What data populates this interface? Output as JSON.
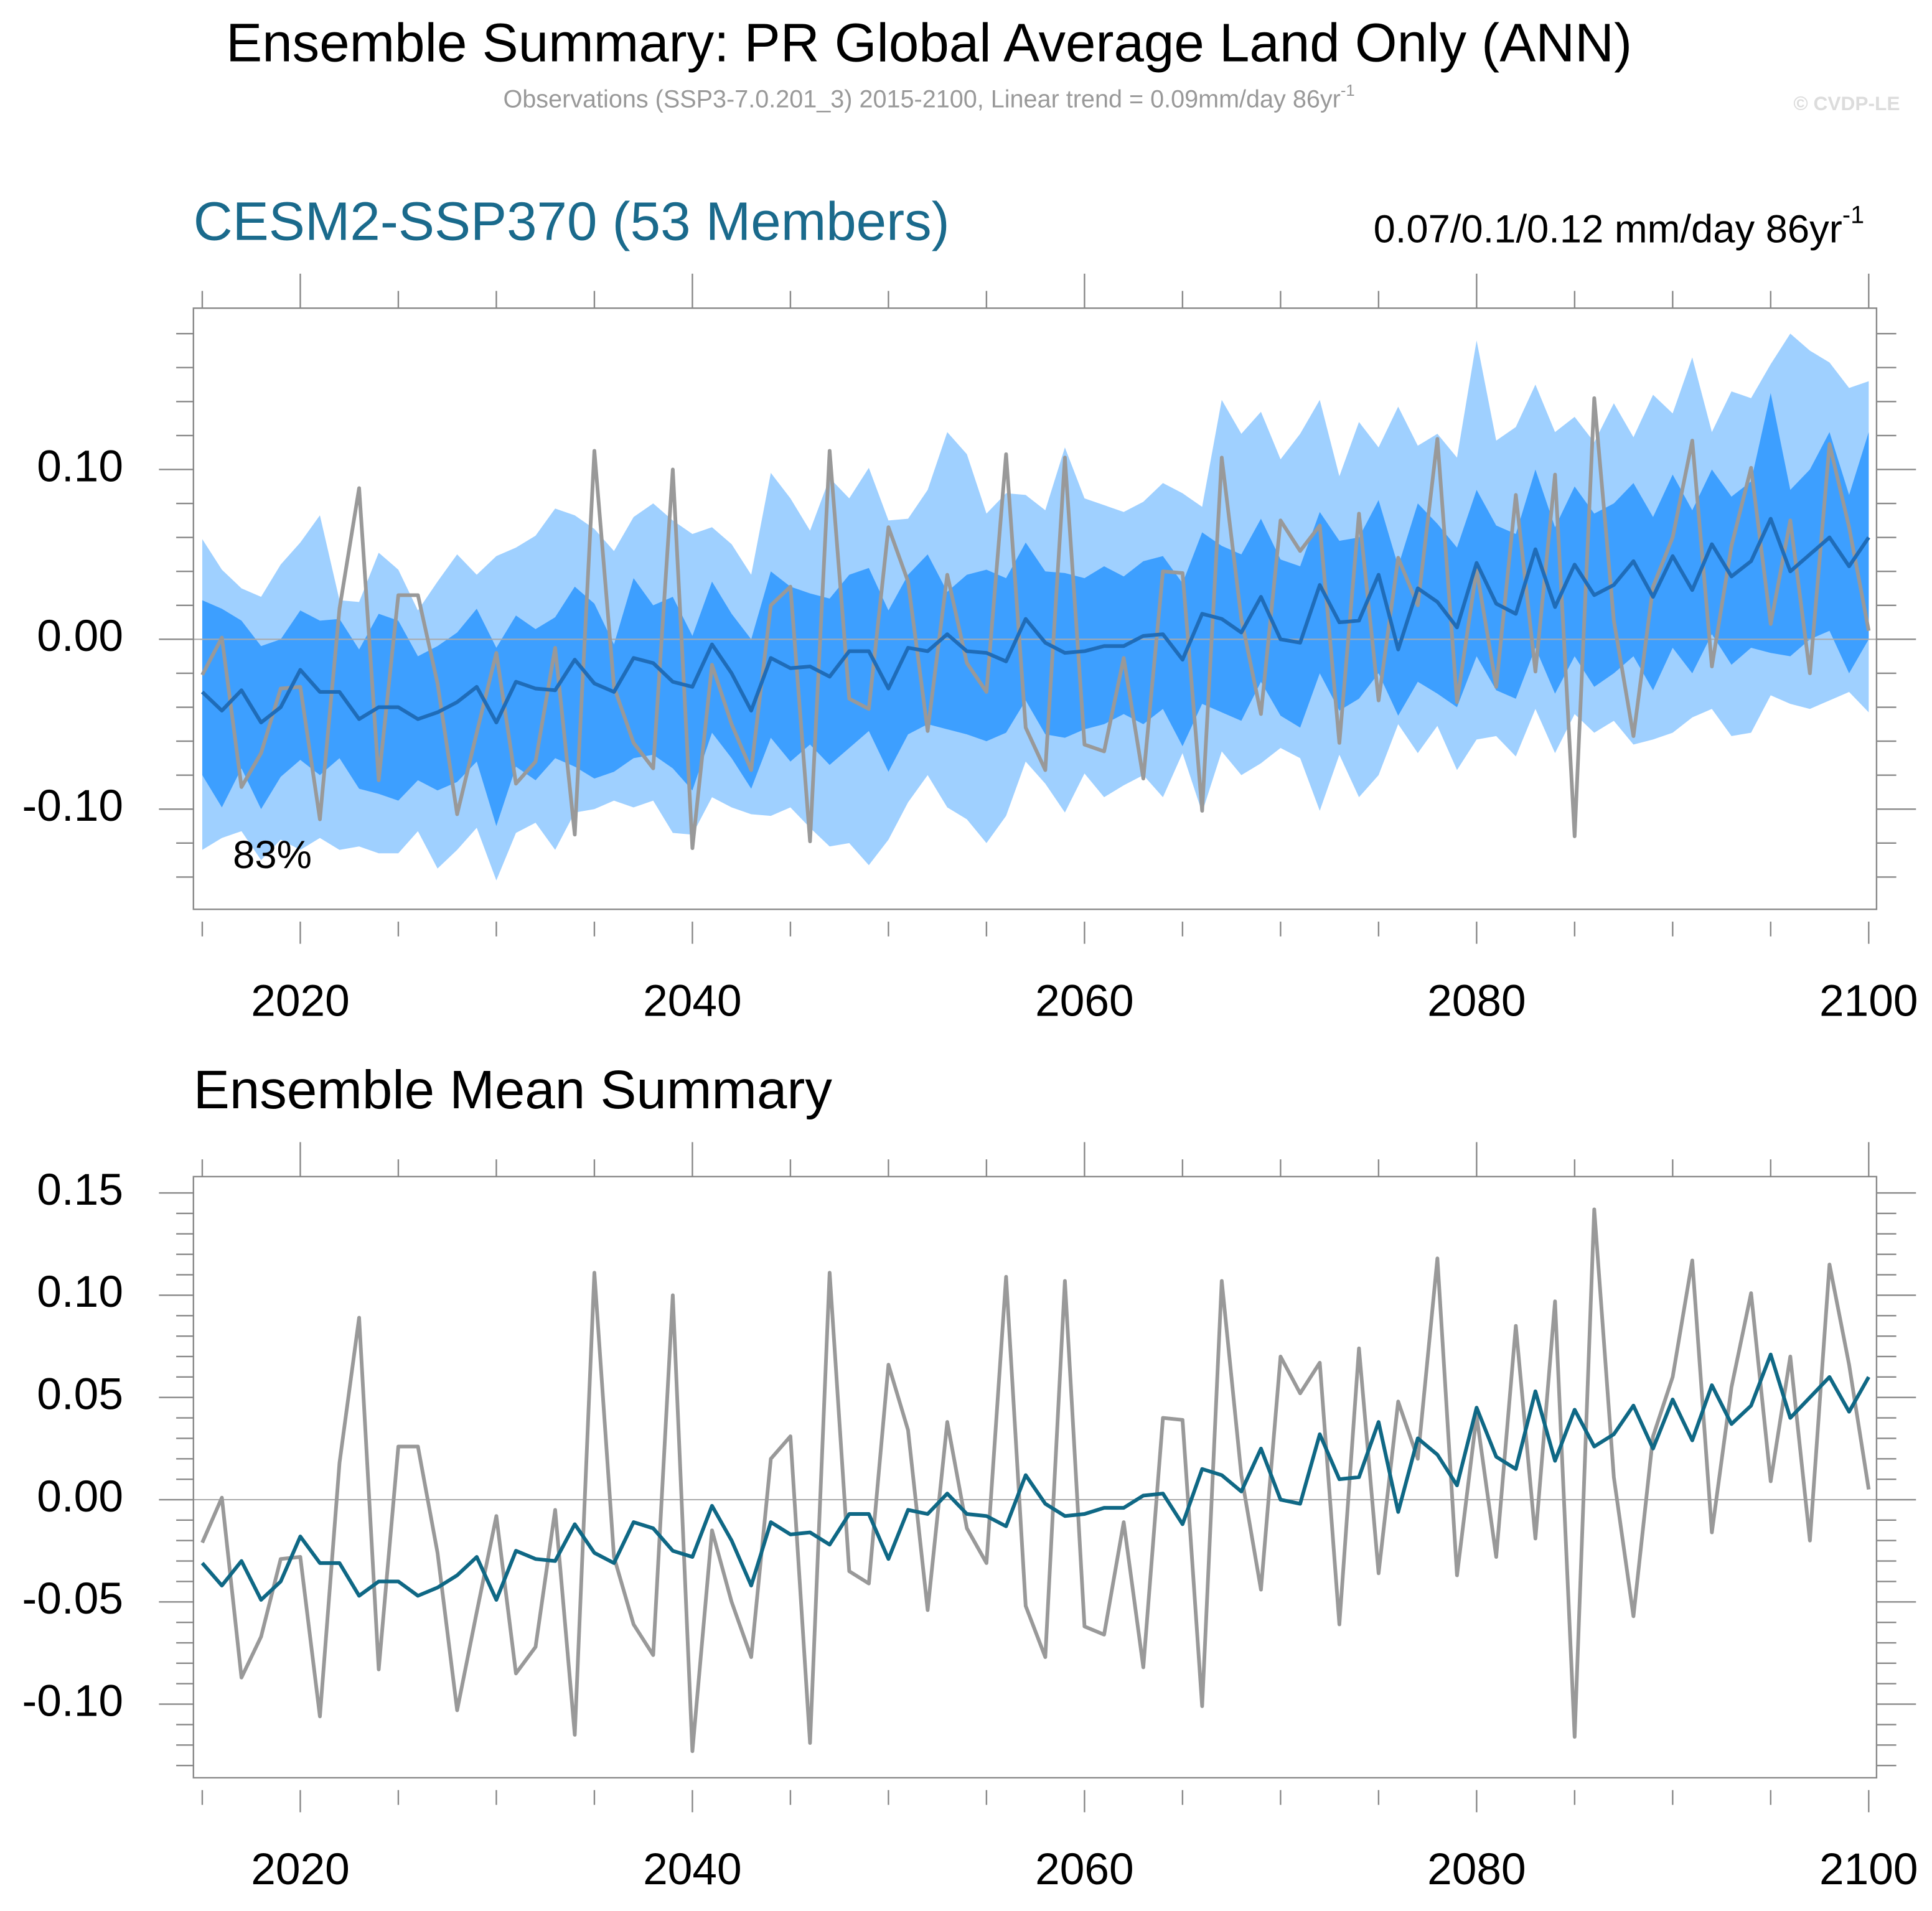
{
  "header": {
    "title": "Ensemble Summary: PR Global Average Land Only (ANN)",
    "subtitle": "Observations (SSP3-7.0.201_3) 2015-2100, Linear trend = 0.09mm/day 86yr",
    "subtitle_sup": "-1",
    "credit": "© CVDP-LE"
  },
  "chart_data": [
    {
      "type": "line",
      "title": "CESM2-SSP370 (53 Members)",
      "title_color": "#1a6a8c",
      "note": "0.07/0.1/0.12 mm/day 86yr",
      "note_sup": "-1",
      "annotation": "83%",
      "x": [
        2015,
        2016,
        2017,
        2018,
        2019,
        2020,
        2021,
        2022,
        2023,
        2024,
        2025,
        2026,
        2027,
        2028,
        2029,
        2030,
        2031,
        2032,
        2033,
        2034,
        2035,
        2036,
        2037,
        2038,
        2039,
        2040,
        2041,
        2042,
        2043,
        2044,
        2045,
        2046,
        2047,
        2048,
        2049,
        2050,
        2051,
        2052,
        2053,
        2054,
        2055,
        2056,
        2057,
        2058,
        2059,
        2060,
        2061,
        2062,
        2063,
        2064,
        2065,
        2066,
        2067,
        2068,
        2069,
        2070,
        2071,
        2072,
        2073,
        2074,
        2075,
        2076,
        2077,
        2078,
        2079,
        2080,
        2081,
        2082,
        2083,
        2084,
        2085,
        2086,
        2087,
        2088,
        2089,
        2090,
        2091,
        2092,
        2093,
        2094,
        2095,
        2096,
        2097,
        2098,
        2099,
        2100
      ],
      "xlim": [
        2014.55,
        2100.4
      ],
      "xticks": [
        2020,
        2040,
        2060,
        2080,
        2100
      ],
      "xminorticks": [
        2015,
        2025,
        2030,
        2035,
        2045,
        2050,
        2055,
        2065,
        2070,
        2075,
        2085,
        2090,
        2095
      ],
      "ylim": [
        -0.159,
        0.195
      ],
      "yticks": [
        {
          "value": -0.1,
          "label": "-0.10"
        },
        {
          "value": 0,
          "label": "0.00"
        },
        {
          "value": 0.1,
          "label": "0.10"
        }
      ],
      "yminorticks": [
        -0.14,
        -0.12,
        -0.08,
        -0.06,
        -0.04,
        -0.02,
        0.02,
        0.04,
        0.06,
        0.08,
        0.12,
        0.14,
        0.16,
        0.18
      ],
      "hline": 0,
      "bands": [
        {
          "color": "#9fd0ff",
          "upper": [
            0.059,
            0.041,
            0.03,
            0.025,
            0.044,
            0.057,
            0.073,
            0.023,
            0.022,
            0.051,
            0.041,
            0.017,
            0.034,
            0.05,
            0.038,
            0.049,
            0.054,
            0.061,
            0.077,
            0.073,
            0.065,
            0.052,
            0.072,
            0.08,
            0.07,
            0.062,
            0.066,
            0.056,
            0.038,
            0.098,
            0.083,
            0.064,
            0.095,
            0.083,
            0.101,
            0.07,
            0.071,
            0.088,
            0.122,
            0.109,
            0.074,
            0.086,
            0.085,
            0.076,
            0.113,
            0.083,
            0.079,
            0.075,
            0.081,
            0.092,
            0.086,
            0.078,
            0.141,
            0.121,
            0.134,
            0.106,
            0.121,
            0.141,
            0.096,
            0.128,
            0.113,
            0.137,
            0.114,
            0.121,
            0.107,
            0.176,
            0.117,
            0.125,
            0.15,
            0.122,
            0.131,
            0.116,
            0.139,
            0.119,
            0.144,
            0.133,
            0.166,
            0.122,
            0.146,
            0.142,
            0.162,
            0.18,
            0.17,
            0.163,
            0.148,
            0.152
          ],
          "lower": [
            -0.124,
            -0.117,
            -0.113,
            -0.13,
            -0.118,
            -0.124,
            -0.117,
            -0.124,
            -0.122,
            -0.126,
            -0.126,
            -0.113,
            -0.135,
            -0.124,
            -0.111,
            -0.142,
            -0.114,
            -0.108,
            -0.124,
            -0.102,
            -0.1,
            -0.095,
            -0.099,
            -0.095,
            -0.114,
            -0.115,
            -0.093,
            -0.099,
            -0.103,
            -0.104,
            -0.099,
            -0.111,
            -0.122,
            -0.12,
            -0.133,
            -0.118,
            -0.096,
            -0.08,
            -0.099,
            -0.106,
            -0.12,
            -0.104,
            -0.072,
            -0.085,
            -0.102,
            -0.079,
            -0.093,
            -0.086,
            -0.08,
            -0.093,
            -0.067,
            -0.102,
            -0.066,
            -0.08,
            -0.073,
            -0.064,
            -0.07,
            -0.101,
            -0.068,
            -0.093,
            -0.08,
            -0.05,
            -0.067,
            -0.051,
            -0.077,
            -0.059,
            -0.057,
            -0.069,
            -0.041,
            -0.067,
            -0.044,
            -0.055,
            -0.048,
            -0.062,
            -0.059,
            -0.055,
            -0.046,
            -0.041,
            -0.057,
            -0.055,
            -0.033,
            -0.038,
            -0.041,
            -0.036,
            -0.031,
            -0.043
          ]
        },
        {
          "color": "#3d9fff",
          "upper": [
            0.023,
            0.018,
            0.011,
            -0.004,
            0.0,
            0.017,
            0.011,
            0.012,
            -0.006,
            0.015,
            0.011,
            -0.01,
            -0.004,
            0.004,
            0.018,
            -0.005,
            0.014,
            0.006,
            0.013,
            0.031,
            0.021,
            -0.003,
            0.036,
            0.02,
            0.025,
            0.002,
            0.034,
            0.015,
            0.0,
            0.04,
            0.031,
            0.027,
            0.024,
            0.038,
            0.042,
            0.017,
            0.038,
            0.05,
            0.028,
            0.038,
            0.041,
            0.036,
            0.057,
            0.04,
            0.039,
            0.036,
            0.043,
            0.037,
            0.046,
            0.049,
            0.033,
            0.063,
            0.055,
            0.05,
            0.071,
            0.047,
            0.043,
            0.075,
            0.058,
            0.06,
            0.082,
            0.043,
            0.08,
            0.068,
            0.054,
            0.088,
            0.067,
            0.062,
            0.1,
            0.066,
            0.09,
            0.074,
            0.08,
            0.092,
            0.072,
            0.097,
            0.076,
            0.1,
            0.084,
            0.093,
            0.145,
            0.088,
            0.1,
            0.122,
            0.085,
            0.122
          ],
          "lower": [
            -0.08,
            -0.099,
            -0.076,
            -0.1,
            -0.081,
            -0.071,
            -0.08,
            -0.07,
            -0.088,
            -0.091,
            -0.095,
            -0.083,
            -0.089,
            -0.084,
            -0.072,
            -0.11,
            -0.075,
            -0.083,
            -0.07,
            -0.075,
            -0.082,
            -0.078,
            -0.07,
            -0.068,
            -0.076,
            -0.089,
            -0.055,
            -0.07,
            -0.088,
            -0.058,
            -0.072,
            -0.062,
            -0.074,
            -0.064,
            -0.054,
            -0.078,
            -0.056,
            -0.05,
            -0.053,
            -0.056,
            -0.06,
            -0.055,
            -0.036,
            -0.056,
            -0.058,
            -0.053,
            -0.05,
            -0.044,
            -0.05,
            -0.041,
            -0.063,
            -0.038,
            -0.043,
            -0.048,
            -0.025,
            -0.045,
            -0.052,
            -0.02,
            -0.042,
            -0.035,
            -0.02,
            -0.045,
            -0.025,
            -0.032,
            -0.04,
            -0.01,
            -0.03,
            -0.035,
            -0.005,
            -0.032,
            -0.01,
            -0.028,
            -0.02,
            -0.01,
            -0.03,
            -0.005,
            -0.02,
            0.003,
            -0.015,
            -0.005,
            -0.008,
            -0.01,
            0.0,
            0.005,
            -0.02,
            0.0
          ]
        }
      ],
      "series": [
        {
          "color": "#999999",
          "values": [
            -0.021,
            0.001,
            -0.087,
            -0.067,
            -0.029,
            -0.028,
            -0.106,
            0.018,
            0.089,
            -0.083,
            0.026,
            0.026,
            -0.026,
            -0.103,
            -0.055,
            -0.008,
            -0.085,
            -0.072,
            -0.005,
            -0.115,
            0.111,
            -0.028,
            -0.061,
            -0.076,
            0.1,
            -0.123,
            -0.015,
            -0.05,
            -0.077,
            0.02,
            0.031,
            -0.119,
            0.111,
            -0.035,
            -0.041,
            0.066,
            0.034,
            -0.054,
            0.038,
            -0.014,
            -0.031,
            0.109,
            -0.052,
            -0.077,
            0.107,
            -0.062,
            -0.066,
            -0.011,
            -0.082,
            0.04,
            0.039,
            -0.101,
            0.107,
            0.012,
            -0.044,
            0.07,
            0.052,
            0.067,
            -0.061,
            0.074,
            -0.036,
            0.048,
            0.02,
            0.118,
            -0.037,
            0.041,
            -0.028,
            0.085,
            -0.019,
            0.097,
            -0.116,
            0.142,
            0.011,
            -0.057,
            0.031,
            0.06,
            0.117,
            -0.016,
            0.055,
            0.101,
            0.009,
            0.07,
            -0.02,
            0.115,
            0.066,
            0.005
          ]
        },
        {
          "color": "#1f6cb8",
          "values": [
            -0.031,
            -0.042,
            -0.03,
            -0.049,
            -0.04,
            -0.018,
            -0.031,
            -0.031,
            -0.047,
            -0.04,
            -0.04,
            -0.047,
            -0.043,
            -0.037,
            -0.028,
            -0.049,
            -0.025,
            -0.029,
            -0.03,
            -0.012,
            -0.026,
            -0.031,
            -0.011,
            -0.014,
            -0.025,
            -0.028,
            -0.003,
            -0.02,
            -0.042,
            -0.011,
            -0.017,
            -0.016,
            -0.022,
            -0.007,
            -0.007,
            -0.029,
            -0.005,
            -0.007,
            0.003,
            -0.007,
            -0.008,
            -0.013,
            0.012,
            -0.002,
            -0.008,
            -0.007,
            -0.004,
            -0.004,
            0.002,
            0.003,
            -0.012,
            0.015,
            0.012,
            0.004,
            0.025,
            0.0,
            -0.002,
            0.032,
            0.01,
            0.011,
            0.038,
            -0.006,
            0.03,
            0.022,
            0.007,
            0.045,
            0.021,
            0.015,
            0.053,
            0.019,
            0.044,
            0.026,
            0.032,
            0.046,
            0.025,
            0.049,
            0.029,
            0.056,
            0.037,
            0.046,
            0.071,
            0.04,
            0.05,
            0.06,
            0.043,
            0.06
          ]
        }
      ]
    },
    {
      "type": "line",
      "title": "Ensemble Mean Summary",
      "title_color": "#000000",
      "x": [
        2015,
        2016,
        2017,
        2018,
        2019,
        2020,
        2021,
        2022,
        2023,
        2024,
        2025,
        2026,
        2027,
        2028,
        2029,
        2030,
        2031,
        2032,
        2033,
        2034,
        2035,
        2036,
        2037,
        2038,
        2039,
        2040,
        2041,
        2042,
        2043,
        2044,
        2045,
        2046,
        2047,
        2048,
        2049,
        2050,
        2051,
        2052,
        2053,
        2054,
        2055,
        2056,
        2057,
        2058,
        2059,
        2060,
        2061,
        2062,
        2063,
        2064,
        2065,
        2066,
        2067,
        2068,
        2069,
        2070,
        2071,
        2072,
        2073,
        2074,
        2075,
        2076,
        2077,
        2078,
        2079,
        2080,
        2081,
        2082,
        2083,
        2084,
        2085,
        2086,
        2087,
        2088,
        2089,
        2090,
        2091,
        2092,
        2093,
        2094,
        2095,
        2096,
        2097,
        2098,
        2099,
        2100
      ],
      "xlim": [
        2014.55,
        2100.4
      ],
      "xticks": [
        2020,
        2040,
        2060,
        2080,
        2100
      ],
      "xminorticks": [
        2015,
        2025,
        2030,
        2035,
        2045,
        2050,
        2055,
        2065,
        2070,
        2075,
        2085,
        2090,
        2095
      ],
      "ylim": [
        -0.136,
        0.158
      ],
      "yticks": [
        {
          "value": -0.1,
          "label": "-0.10"
        },
        -0.05,
        {
          "value": 0,
          "label": "0.00"
        },
        0.05,
        {
          "value": 0.1,
          "label": "0.10"
        },
        0.15
      ],
      "yminorticks": [
        -0.13,
        -0.12,
        -0.11,
        -0.09,
        -0.08,
        -0.07,
        -0.06,
        -0.04,
        -0.03,
        -0.02,
        -0.01,
        0.01,
        0.02,
        0.03,
        0.04,
        0.06,
        0.07,
        0.08,
        0.09,
        0.11,
        0.12,
        0.13,
        0.14
      ],
      "hline": 0,
      "series": [
        {
          "color": "#999999",
          "values": [
            -0.021,
            0.001,
            -0.087,
            -0.067,
            -0.029,
            -0.028,
            -0.106,
            0.018,
            0.089,
            -0.083,
            0.026,
            0.026,
            -0.026,
            -0.103,
            -0.055,
            -0.008,
            -0.085,
            -0.072,
            -0.005,
            -0.115,
            0.111,
            -0.028,
            -0.061,
            -0.076,
            0.1,
            -0.123,
            -0.015,
            -0.05,
            -0.077,
            0.02,
            0.031,
            -0.119,
            0.111,
            -0.035,
            -0.041,
            0.066,
            0.034,
            -0.054,
            0.038,
            -0.014,
            -0.031,
            0.109,
            -0.052,
            -0.077,
            0.107,
            -0.062,
            -0.066,
            -0.011,
            -0.082,
            0.04,
            0.039,
            -0.101,
            0.107,
            0.012,
            -0.044,
            0.07,
            0.052,
            0.067,
            -0.061,
            0.074,
            -0.036,
            0.048,
            0.02,
            0.118,
            -0.037,
            0.041,
            -0.028,
            0.085,
            -0.019,
            0.097,
            -0.116,
            0.142,
            0.011,
            -0.057,
            0.031,
            0.06,
            0.117,
            -0.016,
            0.055,
            0.101,
            0.009,
            0.07,
            -0.02,
            0.115,
            0.066,
            0.005
          ]
        },
        {
          "color": "#0f6885",
          "values": [
            -0.031,
            -0.042,
            -0.03,
            -0.049,
            -0.04,
            -0.018,
            -0.031,
            -0.031,
            -0.047,
            -0.04,
            -0.04,
            -0.047,
            -0.043,
            -0.037,
            -0.028,
            -0.049,
            -0.025,
            -0.029,
            -0.03,
            -0.012,
            -0.026,
            -0.031,
            -0.011,
            -0.014,
            -0.025,
            -0.028,
            -0.003,
            -0.02,
            -0.042,
            -0.011,
            -0.017,
            -0.016,
            -0.022,
            -0.007,
            -0.007,
            -0.029,
            -0.005,
            -0.007,
            0.003,
            -0.007,
            -0.008,
            -0.013,
            0.012,
            -0.002,
            -0.008,
            -0.007,
            -0.004,
            -0.004,
            0.002,
            0.003,
            -0.012,
            0.015,
            0.012,
            0.004,
            0.025,
            0.0,
            -0.002,
            0.032,
            0.01,
            0.011,
            0.038,
            -0.006,
            0.03,
            0.022,
            0.007,
            0.045,
            0.021,
            0.015,
            0.053,
            0.019,
            0.044,
            0.026,
            0.032,
            0.046,
            0.025,
            0.049,
            0.029,
            0.056,
            0.037,
            0.046,
            0.071,
            0.04,
            0.05,
            0.06,
            0.043,
            0.06
          ]
        }
      ]
    }
  ]
}
